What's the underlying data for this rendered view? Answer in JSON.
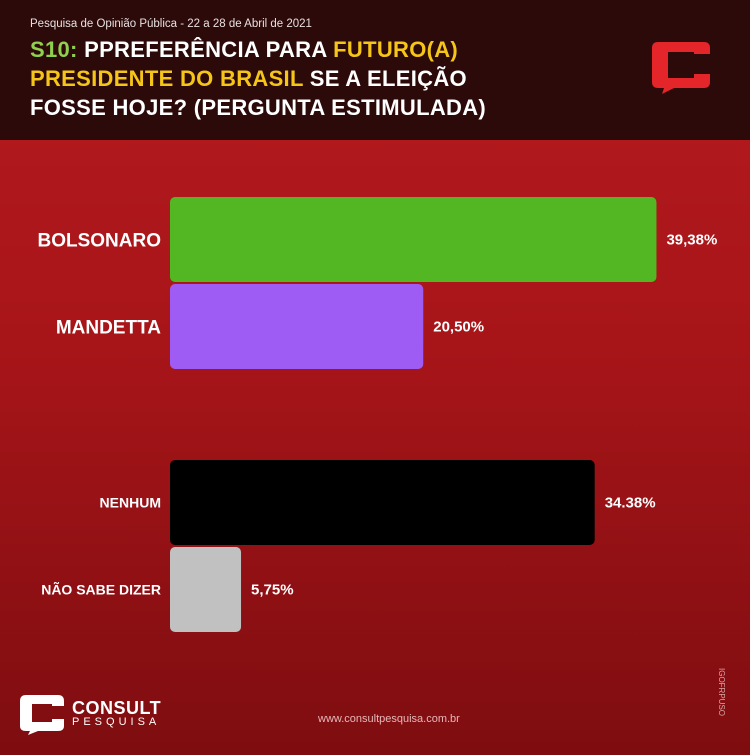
{
  "header": {
    "survey_line": "Pesquisa de Opinião Pública - 22 a 28 de Abril de 2021",
    "q_code": "S10:",
    "l1_a": "PPREFERÊNCIA PARA ",
    "l1_b": "FUTURO(A)",
    "l2_a": "PRESIDENTE DO BRASIL",
    "l2_b": " SE A ELEIÇÃO",
    "l3": "FOSSE HOJE? (PERGUNTA ESTIMULADA)"
  },
  "colors": {
    "header_bg": "#2c0a0a",
    "body_bg": "#b51b1f",
    "green_accent": "#8fd14f",
    "yellow_accent": "#f5c518"
  },
  "chart_data": {
    "type": "bar",
    "orientation": "horizontal",
    "categories": [
      "BOLSONARO",
      "MANDETTA",
      "NENHUM",
      "NÃO SABE DIZER"
    ],
    "values": [
      39.38,
      20.5,
      34.38,
      5.75
    ],
    "value_labels": [
      "39,38%",
      "20,50%",
      "34.38%",
      "5,75%"
    ],
    "bar_colors": [
      "#52b722",
      "#9e5cf4",
      "#000000",
      "#c1c1c1"
    ],
    "groups": [
      [
        0,
        1
      ],
      [
        2,
        3
      ]
    ],
    "xlim": [
      0,
      42.5
    ]
  },
  "footer": {
    "brand": "CONSULT",
    "brand_sub": "PESQUISA",
    "website": "www.consultpesquisa.com.br",
    "vertical_text": "IGOFRPUSO"
  },
  "icons": {
    "top_logo": "consult-c-logo-icon",
    "footer_logo": "consult-c-logo-icon"
  }
}
